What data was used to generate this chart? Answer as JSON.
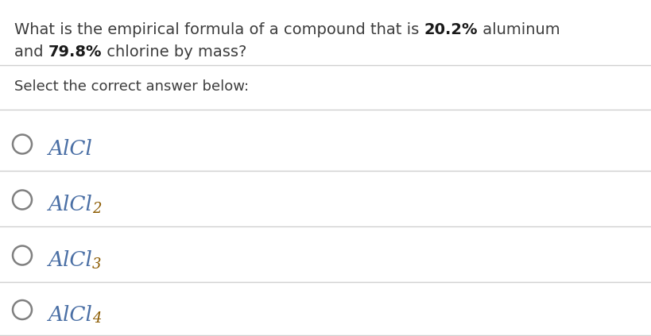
{
  "background_color": "#ffffff",
  "q_part1": "What is the empirical formula of a compound that is ",
  "q_bold1": "20.2%",
  "q_part2": " aluminum",
  "q_part3": "and ",
  "q_bold2": "79.8%",
  "q_part4": " chlorine by mass?",
  "select_text": "Select the correct answer below:",
  "options_base": [
    "AlCl",
    "AlCl",
    "AlCl",
    "AlCl"
  ],
  "options_sub": [
    "",
    "2",
    "3",
    "4"
  ],
  "text_color": "#3d3d3d",
  "bold_color": "#1a1a1a",
  "formula_color_main": "#4a6fa5",
  "formula_color_sub": "#8b5a00",
  "line_color": "#d0d0d0",
  "circle_color": "#808080",
  "question_fontsize": 14,
  "select_fontsize": 13,
  "option_fontsize": 19,
  "sub_fontsize": 13
}
